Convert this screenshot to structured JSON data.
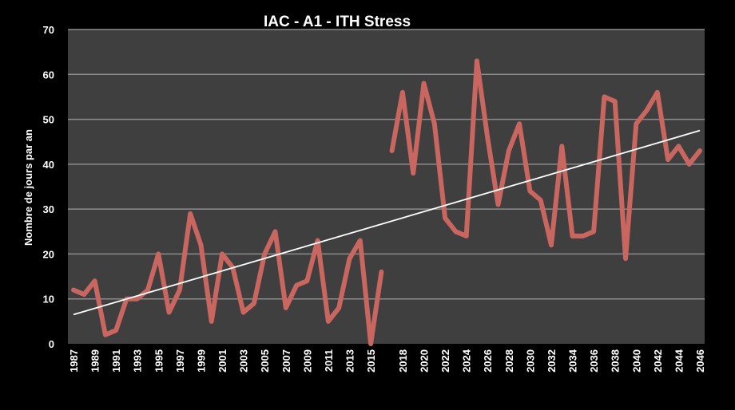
{
  "chart_data": {
    "type": "line",
    "title": "IAC - A1 - ITH Stress",
    "ylabel": "Nombre de jours par an",
    "xlabel": "",
    "ylim": [
      0,
      70
    ],
    "yticks": [
      0,
      10,
      20,
      30,
      40,
      50,
      60,
      70
    ],
    "xlim": [
      1987,
      2046
    ],
    "xticks": [
      "1987",
      "1989",
      "1991",
      "1993",
      "1995",
      "1997",
      "1999",
      "2001",
      "2003",
      "2005",
      "2007",
      "2009",
      "2011",
      "2013",
      "2015",
      "2018",
      "2020",
      "2022",
      "2024",
      "2026",
      "2028",
      "2030",
      "2032",
      "2034",
      "2036",
      "2038",
      "2040",
      "2042",
      "2044",
      "2046"
    ],
    "grid": true,
    "legend": "none",
    "colors": {
      "series": "#c8665f",
      "trend": "#ffffff",
      "plot_bg": "#3f3f3f",
      "grid": "#8c8c8c",
      "background": "#000000"
    },
    "series": [
      {
        "x": [
          1987,
          1988,
          1989,
          1990,
          1991,
          1992,
          1993,
          1994,
          1995,
          1996,
          1997,
          1998,
          1999,
          2000,
          2001,
          2002,
          2003,
          2004,
          2005,
          2006,
          2007,
          2008,
          2009,
          2010,
          2011,
          2012,
          2013,
          2014,
          2015,
          2016
        ],
        "values": [
          12,
          11,
          14,
          2,
          3,
          10,
          10,
          12,
          20,
          7,
          12,
          29,
          22,
          5,
          20,
          17,
          7,
          9,
          20,
          25,
          8,
          13,
          14,
          23,
          5,
          8,
          19,
          23,
          0,
          16
        ]
      },
      {
        "x": [
          2017,
          2018,
          2019,
          2020,
          2021,
          2022,
          2023,
          2024,
          2025,
          2026,
          2027,
          2028,
          2029,
          2030,
          2031,
          2032,
          2033,
          2034,
          2035,
          2036,
          2037,
          2038,
          2039,
          2040,
          2041,
          2042,
          2043,
          2044,
          2045,
          2046
        ],
        "values": [
          43,
          56,
          38,
          58,
          49,
          28,
          25,
          24,
          63,
          46,
          31,
          43,
          49,
          34,
          32,
          22,
          44,
          24,
          24,
          25,
          55,
          54,
          19,
          49,
          52,
          56,
          41,
          44,
          40,
          43
        ]
      }
    ],
    "trendline": {
      "x": [
        1987,
        2046
      ],
      "values": [
        6.5,
        47.5
      ]
    }
  }
}
